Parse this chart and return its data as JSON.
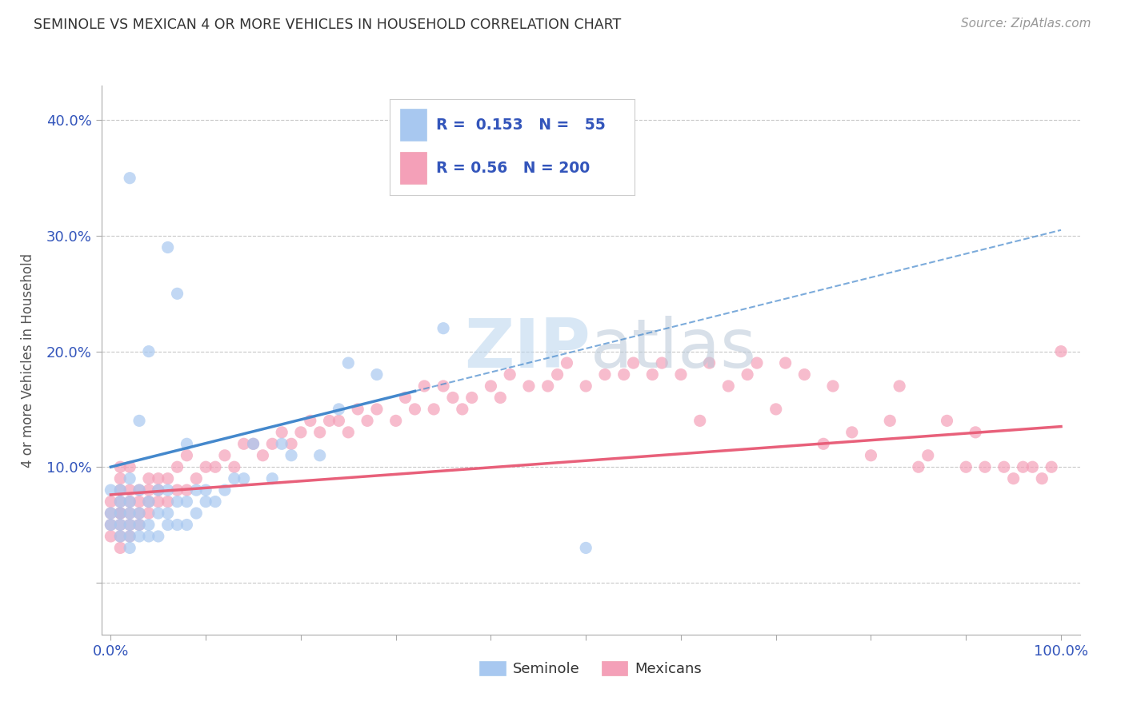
{
  "title": "SEMINOLE VS MEXICAN 4 OR MORE VEHICLES IN HOUSEHOLD CORRELATION CHART",
  "source_text": "Source: ZipAtlas.com",
  "xlabel": "",
  "ylabel": "4 or more Vehicles in Household",
  "watermark": "ZIPatlas",
  "xlim": [
    -0.01,
    1.02
  ],
  "ylim": [
    -0.045,
    0.43
  ],
  "xticks": [
    0.0,
    0.1,
    0.2,
    0.3,
    0.4,
    0.5,
    0.6,
    0.7,
    0.8,
    0.9,
    1.0
  ],
  "xticklabels": [
    "0.0%",
    "",
    "",
    "",
    "",
    "",
    "",
    "",
    "",
    "",
    "100.0%"
  ],
  "yticks": [
    0.0,
    0.1,
    0.2,
    0.3,
    0.4
  ],
  "yticklabels": [
    "",
    "10.0%",
    "20.0%",
    "30.0%",
    "40.0%"
  ],
  "seminole_color": "#a8c8f0",
  "mexicans_color": "#f4a0b8",
  "seminole_R": 0.153,
  "seminole_N": 55,
  "mexicans_R": 0.56,
  "mexicans_N": 200,
  "trend_seminole_color": "#4488cc",
  "trend_mexicans_color": "#e8607a",
  "legend_R_N_color": "#3355bb",
  "grid_color": "#c8c8c8",
  "background_color": "#ffffff",
  "trend_sem_x0": 0.0,
  "trend_sem_y0": 0.1,
  "trend_sem_x1": 1.0,
  "trend_sem_y1": 0.305,
  "trend_sem_solid_end": 0.32,
  "trend_mex_x0": 0.0,
  "trend_mex_y0": 0.076,
  "trend_mex_x1": 1.0,
  "trend_mex_y1": 0.135,
  "seminole_x": [
    0.0,
    0.0,
    0.0,
    0.01,
    0.01,
    0.01,
    0.01,
    0.01,
    0.02,
    0.02,
    0.02,
    0.02,
    0.02,
    0.02,
    0.02,
    0.03,
    0.03,
    0.03,
    0.03,
    0.03,
    0.04,
    0.04,
    0.04,
    0.04,
    0.05,
    0.05,
    0.05,
    0.06,
    0.06,
    0.06,
    0.06,
    0.07,
    0.07,
    0.07,
    0.08,
    0.08,
    0.08,
    0.09,
    0.09,
    0.1,
    0.1,
    0.11,
    0.12,
    0.13,
    0.14,
    0.15,
    0.17,
    0.18,
    0.19,
    0.22,
    0.24,
    0.25,
    0.28,
    0.35,
    0.5
  ],
  "seminole_y": [
    0.05,
    0.06,
    0.08,
    0.04,
    0.05,
    0.06,
    0.07,
    0.08,
    0.03,
    0.04,
    0.05,
    0.06,
    0.07,
    0.09,
    0.35,
    0.04,
    0.05,
    0.06,
    0.08,
    0.14,
    0.04,
    0.05,
    0.07,
    0.2,
    0.04,
    0.06,
    0.08,
    0.05,
    0.06,
    0.08,
    0.29,
    0.05,
    0.07,
    0.25,
    0.05,
    0.07,
    0.12,
    0.06,
    0.08,
    0.07,
    0.08,
    0.07,
    0.08,
    0.09,
    0.09,
    0.12,
    0.09,
    0.12,
    0.11,
    0.11,
    0.15,
    0.19,
    0.18,
    0.22,
    0.03
  ],
  "mexicans_x": [
    0.0,
    0.0,
    0.0,
    0.0,
    0.01,
    0.01,
    0.01,
    0.01,
    0.01,
    0.01,
    0.01,
    0.01,
    0.01,
    0.02,
    0.02,
    0.02,
    0.02,
    0.02,
    0.02,
    0.03,
    0.03,
    0.03,
    0.03,
    0.04,
    0.04,
    0.04,
    0.04,
    0.05,
    0.05,
    0.05,
    0.06,
    0.06,
    0.07,
    0.07,
    0.08,
    0.08,
    0.09,
    0.1,
    0.11,
    0.12,
    0.13,
    0.14,
    0.15,
    0.16,
    0.17,
    0.18,
    0.19,
    0.2,
    0.21,
    0.22,
    0.23,
    0.24,
    0.25,
    0.26,
    0.27,
    0.28,
    0.3,
    0.31,
    0.32,
    0.33,
    0.34,
    0.35,
    0.36,
    0.37,
    0.38,
    0.4,
    0.41,
    0.42,
    0.44,
    0.46,
    0.47,
    0.48,
    0.5,
    0.52,
    0.54,
    0.55,
    0.57,
    0.58,
    0.6,
    0.62,
    0.63,
    0.65,
    0.67,
    0.68,
    0.7,
    0.71,
    0.73,
    0.75,
    0.76,
    0.78,
    0.8,
    0.82,
    0.83,
    0.85,
    0.86,
    0.88,
    0.9,
    0.91,
    0.92,
    0.94,
    0.95,
    0.96,
    0.97,
    0.98,
    0.99,
    1.0
  ],
  "mexicans_y": [
    0.04,
    0.05,
    0.06,
    0.07,
    0.03,
    0.04,
    0.05,
    0.06,
    0.07,
    0.08,
    0.09,
    0.1,
    0.06,
    0.04,
    0.05,
    0.06,
    0.07,
    0.08,
    0.1,
    0.05,
    0.06,
    0.07,
    0.08,
    0.06,
    0.07,
    0.08,
    0.09,
    0.07,
    0.08,
    0.09,
    0.07,
    0.09,
    0.08,
    0.1,
    0.08,
    0.11,
    0.09,
    0.1,
    0.1,
    0.11,
    0.1,
    0.12,
    0.12,
    0.11,
    0.12,
    0.13,
    0.12,
    0.13,
    0.14,
    0.13,
    0.14,
    0.14,
    0.13,
    0.15,
    0.14,
    0.15,
    0.14,
    0.16,
    0.15,
    0.17,
    0.15,
    0.17,
    0.16,
    0.15,
    0.16,
    0.17,
    0.16,
    0.18,
    0.17,
    0.17,
    0.18,
    0.19,
    0.17,
    0.18,
    0.18,
    0.19,
    0.18,
    0.19,
    0.18,
    0.14,
    0.19,
    0.17,
    0.18,
    0.19,
    0.15,
    0.19,
    0.18,
    0.12,
    0.17,
    0.13,
    0.11,
    0.14,
    0.17,
    0.1,
    0.11,
    0.14,
    0.1,
    0.13,
    0.1,
    0.1,
    0.09,
    0.1,
    0.1,
    0.09,
    0.1,
    0.2
  ]
}
